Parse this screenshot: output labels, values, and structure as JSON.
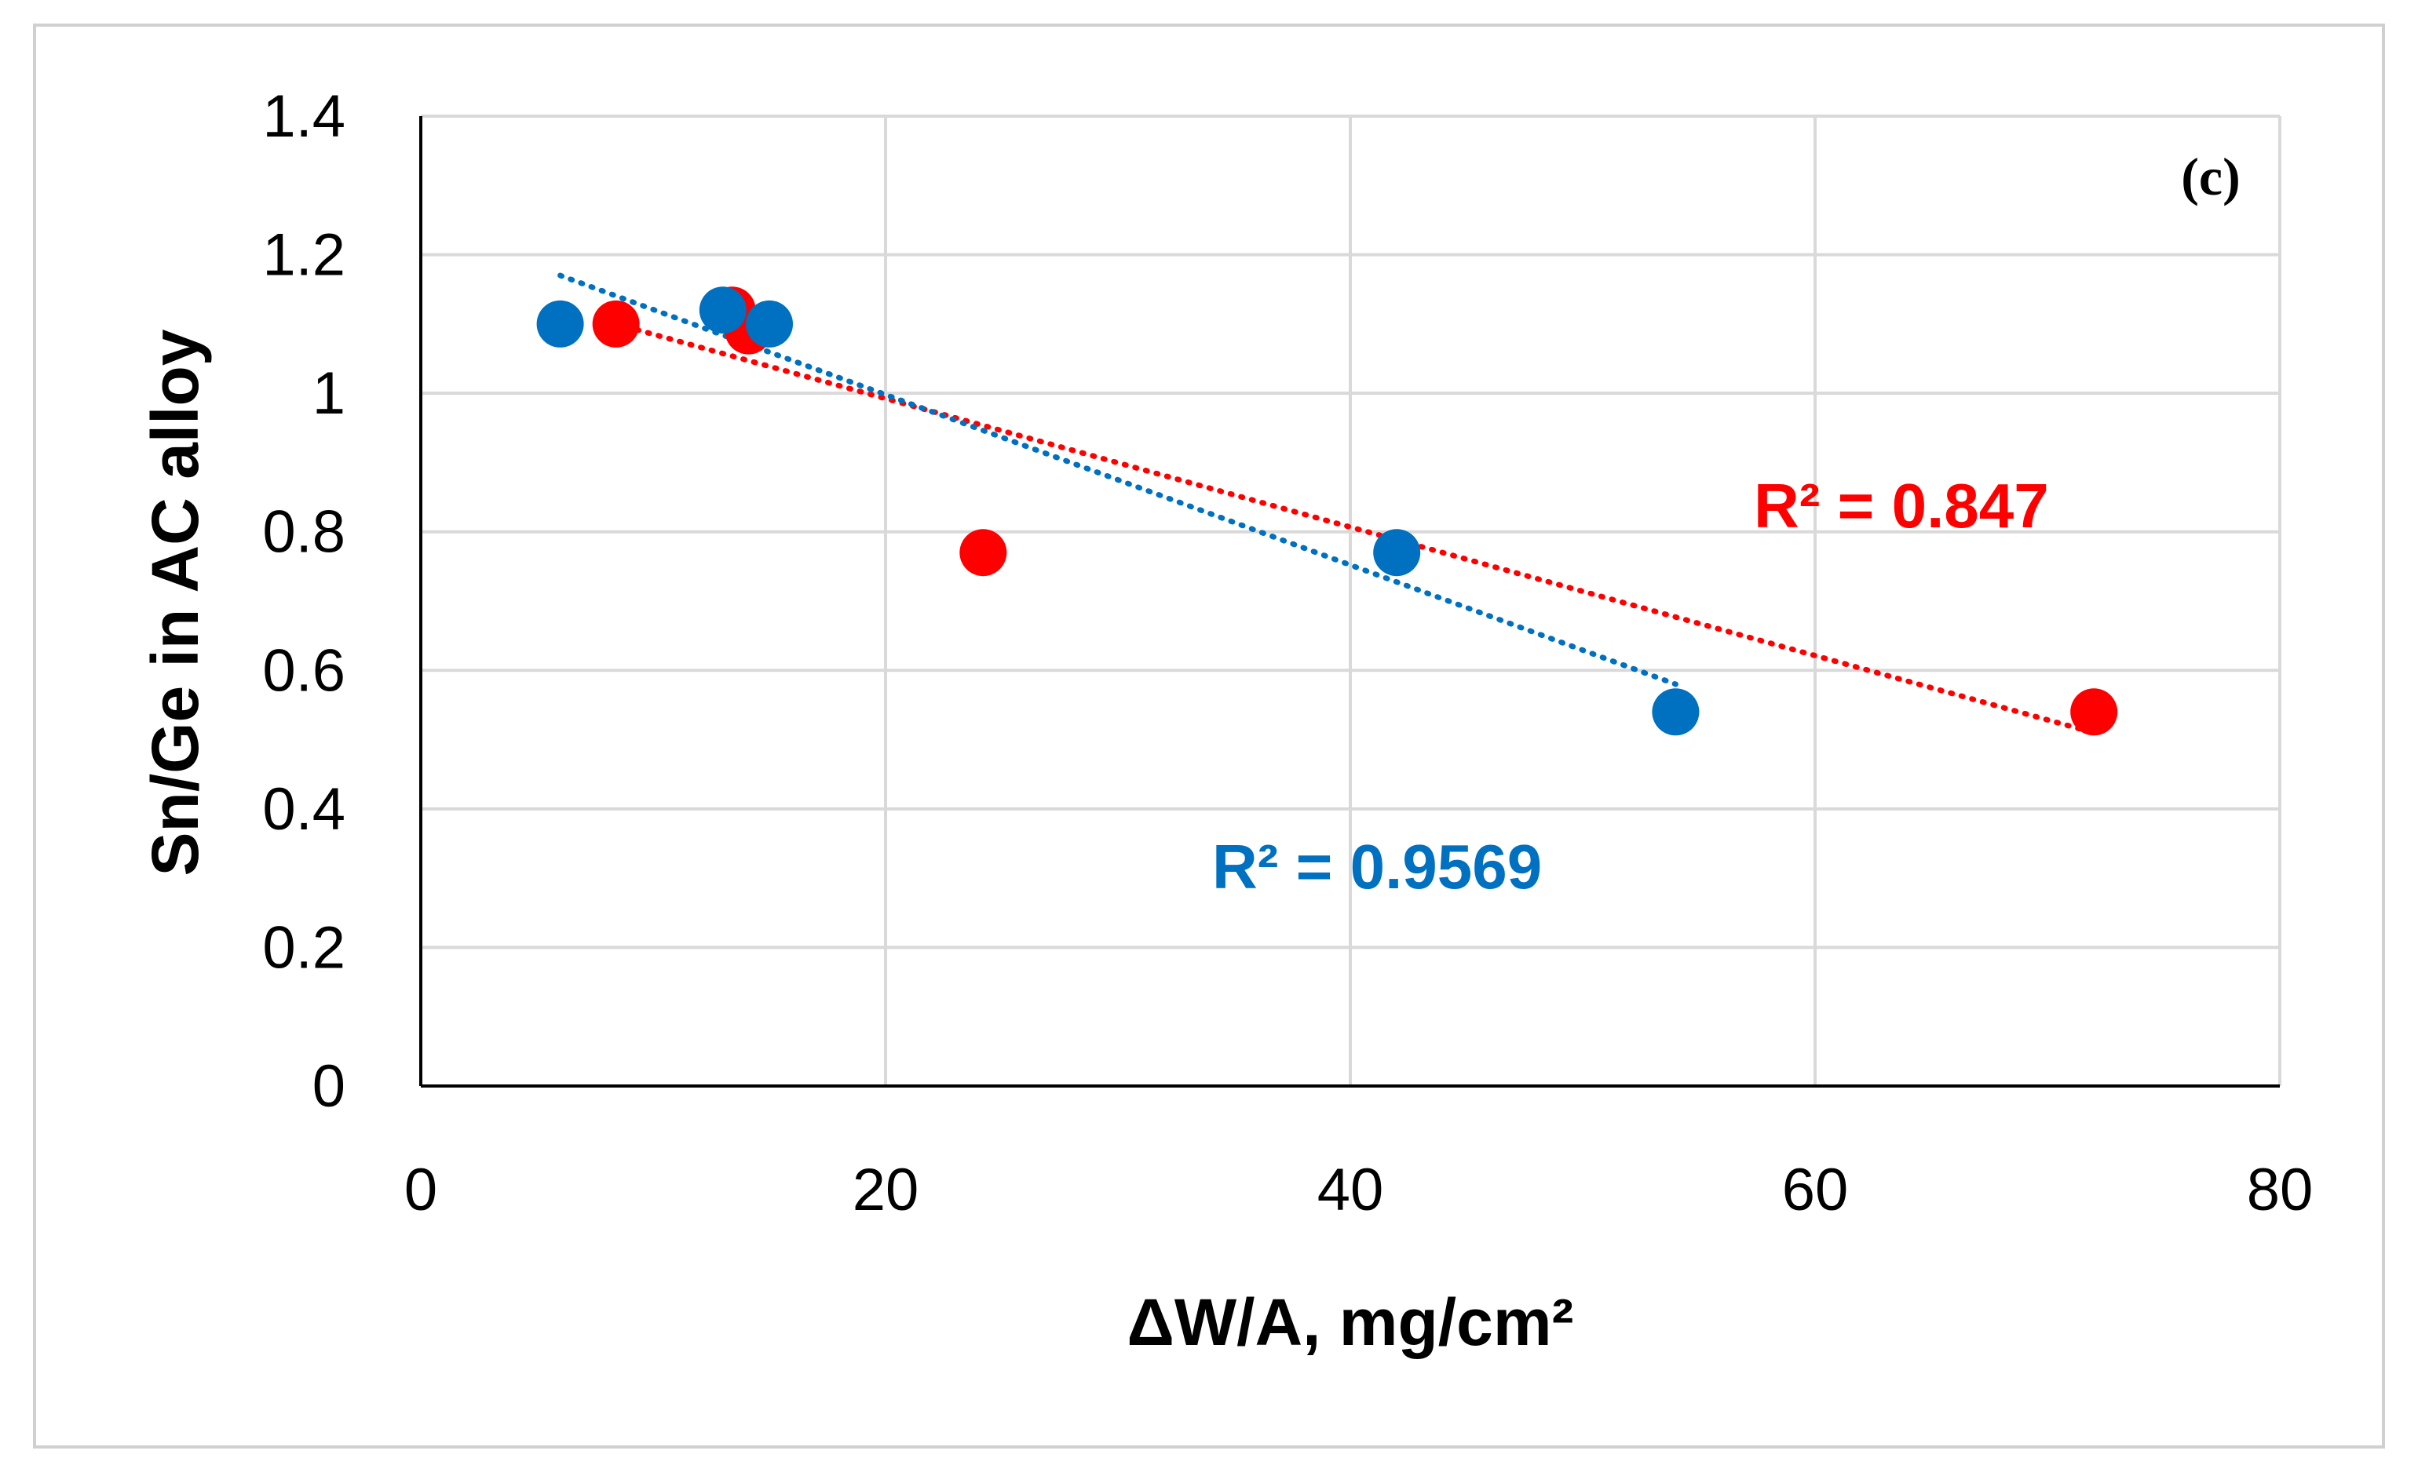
{
  "chart_data": {
    "type": "scatter",
    "title": "",
    "panel_label": "(c)",
    "xlabel": "ΔW/A, mg/cm²",
    "ylabel": "Sn/Ge in AC alloy",
    "xlim": [
      0,
      80
    ],
    "ylim": [
      0,
      1.4
    ],
    "x_ticks": [
      0,
      20,
      40,
      60,
      80
    ],
    "y_ticks": [
      0,
      0.2,
      0.4,
      0.6,
      0.8,
      1,
      1.2,
      1.4
    ],
    "x_tick_labels": [
      "0",
      "20",
      "40",
      "60",
      "80"
    ],
    "y_tick_labels": [
      "0",
      "0.2",
      "0.4",
      "0.6",
      "0.8",
      "1",
      "1.2",
      "1.4"
    ],
    "grid": true,
    "legend": "none",
    "series": [
      {
        "name": "red",
        "color": "#ff0000",
        "points": [
          {
            "x": 8.4,
            "y": 1.1
          },
          {
            "x": 13.4,
            "y": 1.12
          },
          {
            "x": 14.1,
            "y": 1.09
          },
          {
            "x": 24.2,
            "y": 0.77
          },
          {
            "x": 72,
            "y": 0.54
          }
        ],
        "trendline": {
          "type": "linear",
          "x_start": 8.4,
          "x_end": 72,
          "y_start": 1.1,
          "y_end": 0.51
        },
        "r2_label": "R² = 0.847"
      },
      {
        "name": "blue",
        "color": "#0070c0",
        "points": [
          {
            "x": 6,
            "y": 1.1
          },
          {
            "x": 13,
            "y": 1.12
          },
          {
            "x": 15,
            "y": 1.1
          },
          {
            "x": 42,
            "y": 0.77
          },
          {
            "x": 54,
            "y": 0.54
          }
        ],
        "trendline": {
          "type": "linear",
          "x_start": 6,
          "x_end": 54,
          "y_start": 1.17,
          "y_end": 0.58
        },
        "r2_label": "R² = 0.9569"
      }
    ]
  }
}
